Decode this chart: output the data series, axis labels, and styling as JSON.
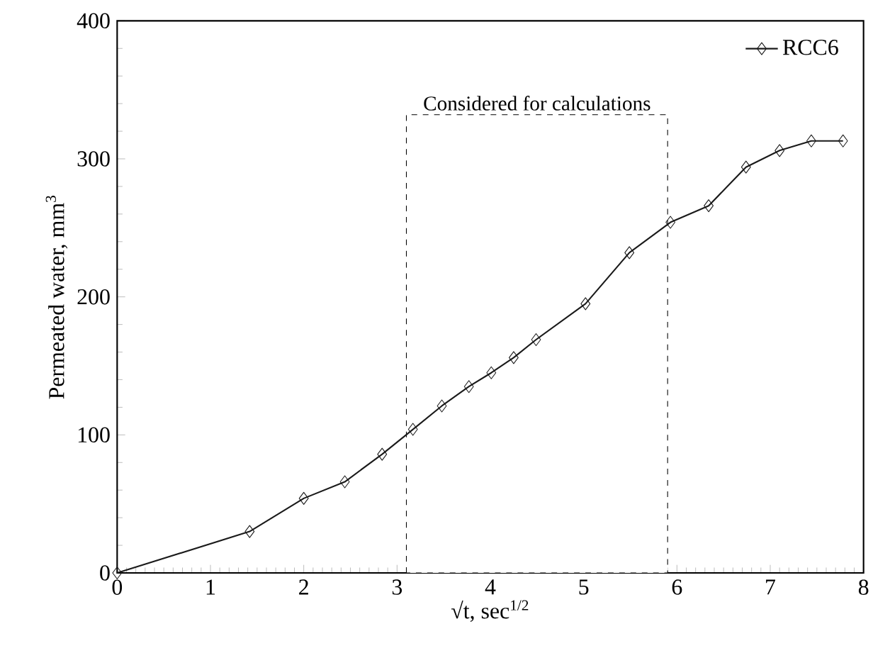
{
  "chart_data": {
    "type": "line",
    "xlabel": "√t, sec$^{1/2}$",
    "ylabel": "Permeated water, mm$^{3}$",
    "x": [
      0,
      1.42,
      2.0,
      2.44,
      2.84,
      3.17,
      3.48,
      3.77,
      4.01,
      4.25,
      4.49,
      5.02,
      5.49,
      5.93,
      6.34,
      6.74,
      7.1,
      7.44,
      7.78
    ],
    "series": [
      {
        "name": "RCC6",
        "color": "#1a1a1a",
        "values": [
          0,
          30,
          54,
          66,
          86,
          104,
          121,
          135,
          145,
          156,
          169,
          195,
          232,
          254,
          266,
          294,
          306,
          313,
          313
        ]
      }
    ],
    "xlim": [
      0,
      8
    ],
    "xticks": [
      0,
      1,
      2,
      3,
      4,
      5,
      6,
      7,
      8
    ],
    "ylim": [
      0,
      400
    ],
    "yticks": [
      0,
      100,
      200,
      300,
      400
    ],
    "bands": [
      {
        "axis": "x",
        "from": 3.1,
        "to": 5.9,
        "label": "Considered for calculations",
        "color": "#ffffff"
      }
    ],
    "legend": "top right",
    "marker": "diamond",
    "line_style": "solid",
    "grid": false
  }
}
